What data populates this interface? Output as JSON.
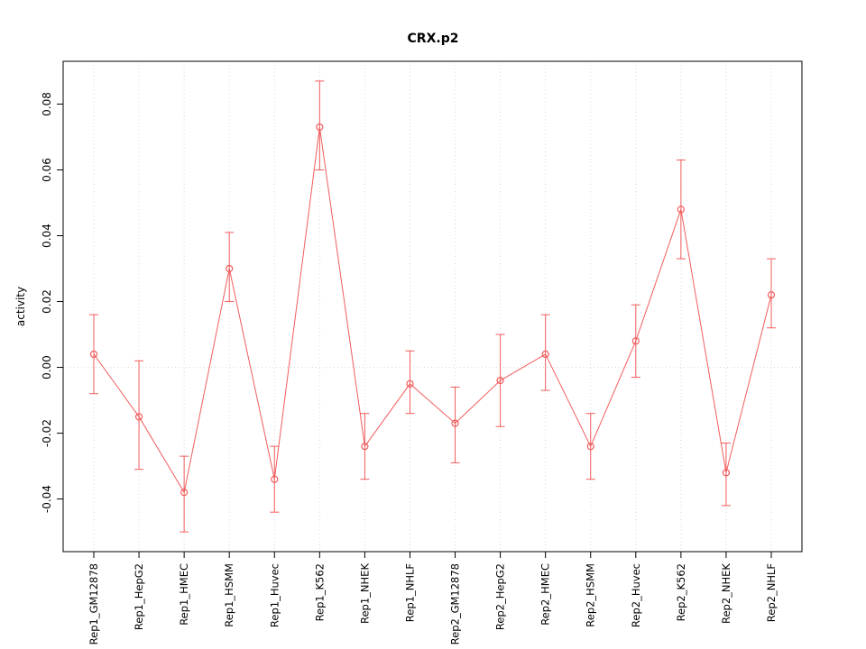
{
  "chart_data": {
    "type": "line",
    "title": "CRX.p2",
    "xlabel": "",
    "ylabel": "activity",
    "categories": [
      "Rep1_GM12878",
      "Rep1_HepG2",
      "Rep1_HMEC",
      "Rep1_HSMM",
      "Rep1_Huvec",
      "Rep1_K562",
      "Rep1_NHEK",
      "Rep1_NHLF",
      "Rep2_GM12878",
      "Rep2_HepG2",
      "Rep2_HMEC",
      "Rep2_HSMM",
      "Rep2_Huvec",
      "Rep2_K562",
      "Rep2_NHEK",
      "Rep2_NHLF"
    ],
    "series": [
      {
        "name": "activity",
        "values": [
          0.004,
          -0.015,
          -0.038,
          0.03,
          -0.034,
          0.073,
          -0.024,
          -0.005,
          -0.017,
          -0.004,
          0.004,
          -0.024,
          0.008,
          0.048,
          -0.032,
          0.022
        ],
        "err_high": [
          0.016,
          0.002,
          -0.027,
          0.041,
          -0.024,
          0.087,
          -0.014,
          0.005,
          -0.006,
          0.01,
          0.016,
          -0.014,
          0.019,
          0.063,
          -0.023,
          0.033
        ],
        "err_low": [
          -0.008,
          -0.031,
          -0.05,
          0.02,
          -0.044,
          0.06,
          -0.034,
          -0.014,
          -0.029,
          -0.018,
          -0.007,
          -0.034,
          -0.003,
          0.033,
          -0.042,
          0.012
        ]
      }
    ],
    "yticks": [
      -0.04,
      -0.02,
      0,
      0.02,
      0.04,
      0.06,
      0.08
    ],
    "ylim": [
      -0.056,
      0.093
    ],
    "grid": true,
    "legend": false,
    "colors": {
      "line": "#f25c5c",
      "grid": "#d8d8d8",
      "axis": "#000000",
      "background": "#ffffff"
    }
  }
}
